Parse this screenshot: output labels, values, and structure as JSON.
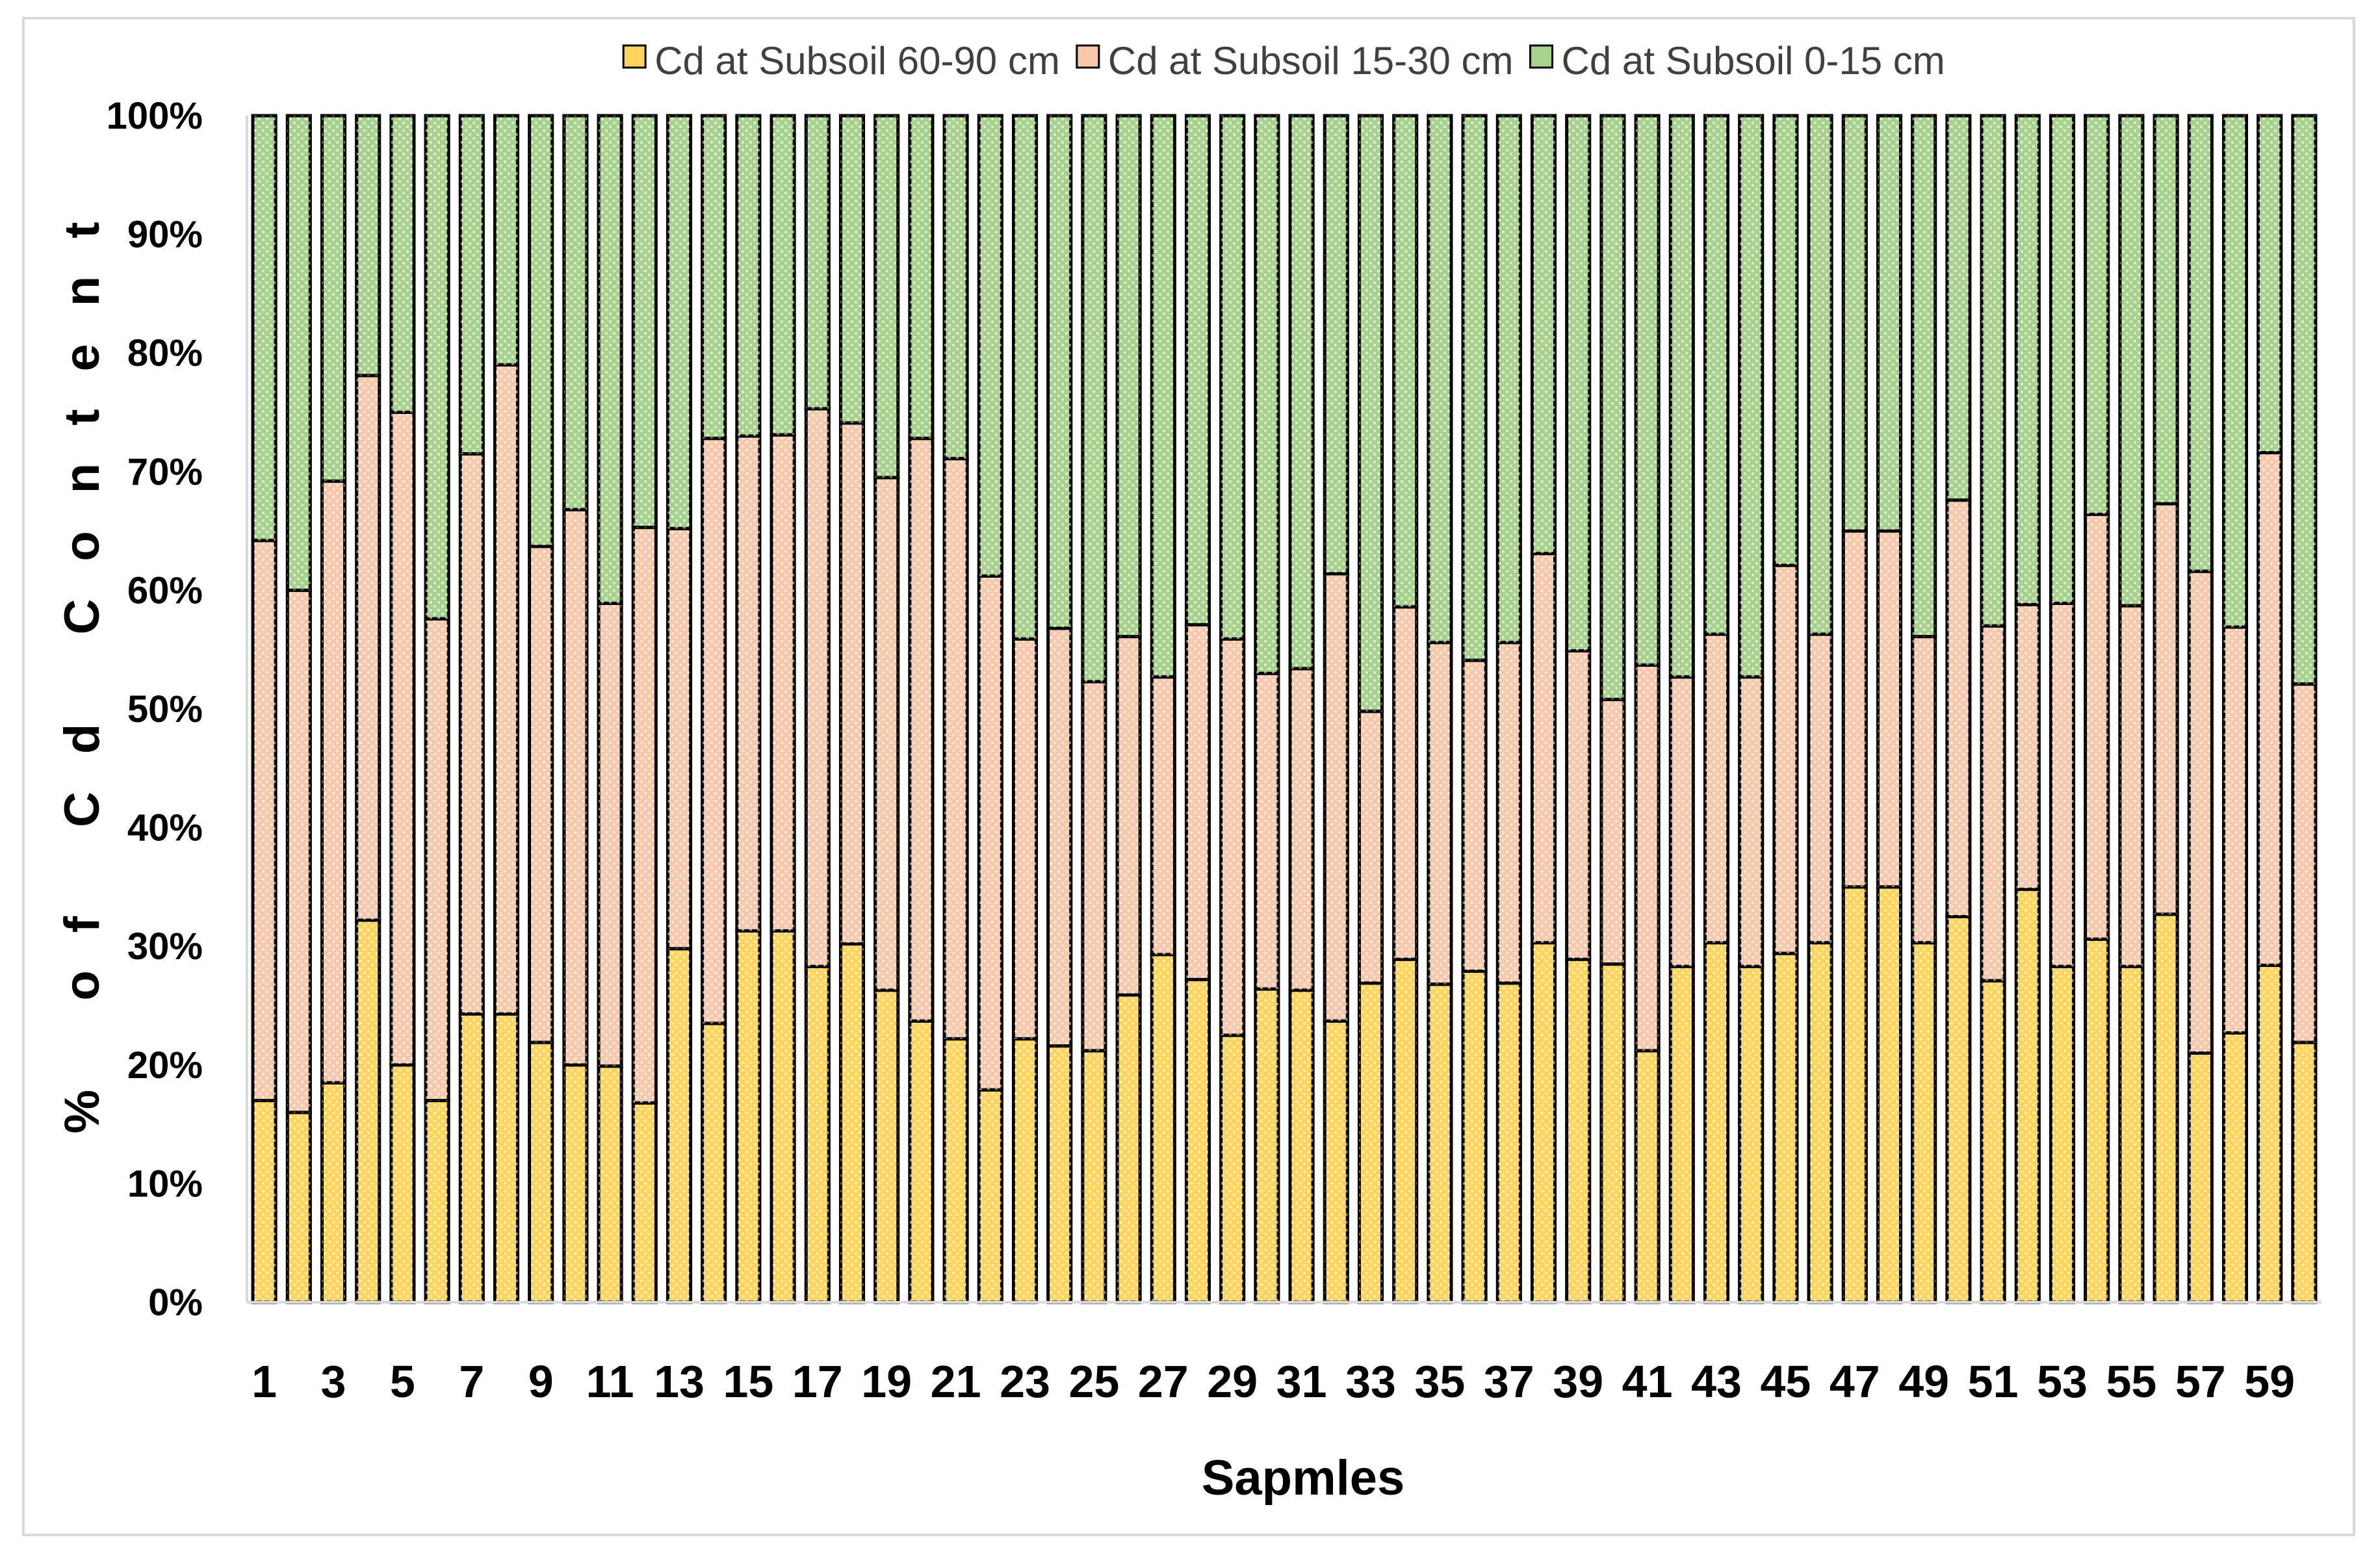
{
  "chart_data": {
    "type": "bar",
    "stacked": true,
    "normalized": true,
    "xlabel": "Sapmles",
    "ylabel": "% of Cd Content",
    "ylim": [
      0,
      100
    ],
    "y_ticks": [
      "0%",
      "10%",
      "20%",
      "30%",
      "40%",
      "50%",
      "60%",
      "70%",
      "80%",
      "90%",
      "100%"
    ],
    "x_tick_labels": [
      "1",
      "3",
      "5",
      "7",
      "9",
      "11",
      "13",
      "15",
      "17",
      "19",
      "21",
      "23",
      "25",
      "27",
      "29",
      "31",
      "33",
      "35",
      "37",
      "39",
      "41",
      "43",
      "45",
      "47",
      "49",
      "51",
      "53",
      "55",
      "57",
      "59"
    ],
    "categories": [
      "1",
      "2",
      "3",
      "4",
      "5",
      "6",
      "7",
      "8",
      "9",
      "10",
      "11",
      "12",
      "13",
      "14",
      "15",
      "16",
      "17",
      "18",
      "19",
      "20",
      "21",
      "22",
      "23",
      "24",
      "25",
      "26",
      "27",
      "28",
      "29",
      "30",
      "31",
      "32",
      "33",
      "34",
      "35",
      "36",
      "37",
      "38",
      "39",
      "40",
      "41",
      "42",
      "43",
      "44",
      "45",
      "46",
      "47",
      "48",
      "49",
      "50",
      "51",
      "52",
      "53",
      "54",
      "55",
      "56",
      "57",
      "58",
      "59",
      "60"
    ],
    "legend_position": "top",
    "grid": false,
    "series": [
      {
        "name": "Cd at Subsoil 60-90 cm",
        "color": "#ffd45c",
        "values": [
          17,
          16,
          18.5,
          32.2,
          20,
          17,
          24.3,
          24.3,
          21.9,
          20,
          19.9,
          16.8,
          29.8,
          23.5,
          31.3,
          31.3,
          28.3,
          30.2,
          26.3,
          23.7,
          22.2,
          17.9,
          22.2,
          21.6,
          21.2,
          25.9,
          29.3,
          27.2,
          22.5,
          26.4,
          26.3,
          23.7,
          26.9,
          28.9,
          26.8,
          27.9,
          26.9,
          30.3,
          28.9,
          28.5,
          21.2,
          28.3,
          30.3,
          28.3,
          29.4,
          30.3,
          35,
          35,
          30.3,
          32.5,
          27.1,
          34.8,
          28.3,
          30.6,
          28.3,
          32.7,
          21,
          22.7,
          28.4,
          21.9
        ]
      },
      {
        "name": "Cd at Subsoil 15-30 cm",
        "color": "#f6c9ad",
        "values": [
          47.2,
          44,
          50.7,
          45.9,
          55,
          40.6,
          47.2,
          54.7,
          41.8,
          46.8,
          39,
          48.5,
          35.4,
          49.3,
          41.7,
          41.8,
          47,
          43.9,
          43.2,
          49.1,
          48.9,
          43.3,
          33.7,
          35.2,
          31.1,
          30.2,
          23.4,
          29.9,
          33.4,
          26.6,
          27.1,
          37.7,
          22.9,
          29.7,
          28.8,
          26.2,
          28.7,
          32.8,
          26,
          22.3,
          32.5,
          24.4,
          26,
          24.4,
          32.7,
          26,
          30,
          30,
          25.8,
          35.1,
          29.9,
          24,
          30.6,
          35.8,
          30.4,
          34.6,
          40.6,
          34.2,
          43.2,
          30.2
        ]
      },
      {
        "name": "Cd at Subsoil 0-15 cm",
        "color": "#a9d18e",
        "values": [
          35.8,
          40,
          30.8,
          21.9,
          25,
          42.4,
          28.5,
          21,
          36.3,
          33.2,
          41.1,
          34.7,
          34.8,
          27.2,
          27,
          26.9,
          24.7,
          25.9,
          30.5,
          27.2,
          28.9,
          38.8,
          44.1,
          43.2,
          47.7,
          43.9,
          47.3,
          42.9,
          44.1,
          47,
          46.6,
          38.6,
          50.2,
          41.4,
          44.4,
          45.9,
          44.4,
          36.9,
          45.1,
          49.2,
          46.3,
          47.3,
          43.7,
          47.3,
          37.9,
          43.7,
          35,
          35,
          43.9,
          32.4,
          43,
          41.2,
          41.1,
          33.6,
          41.3,
          32.7,
          38.4,
          43.1,
          28.4,
          47.9
        ]
      }
    ]
  }
}
